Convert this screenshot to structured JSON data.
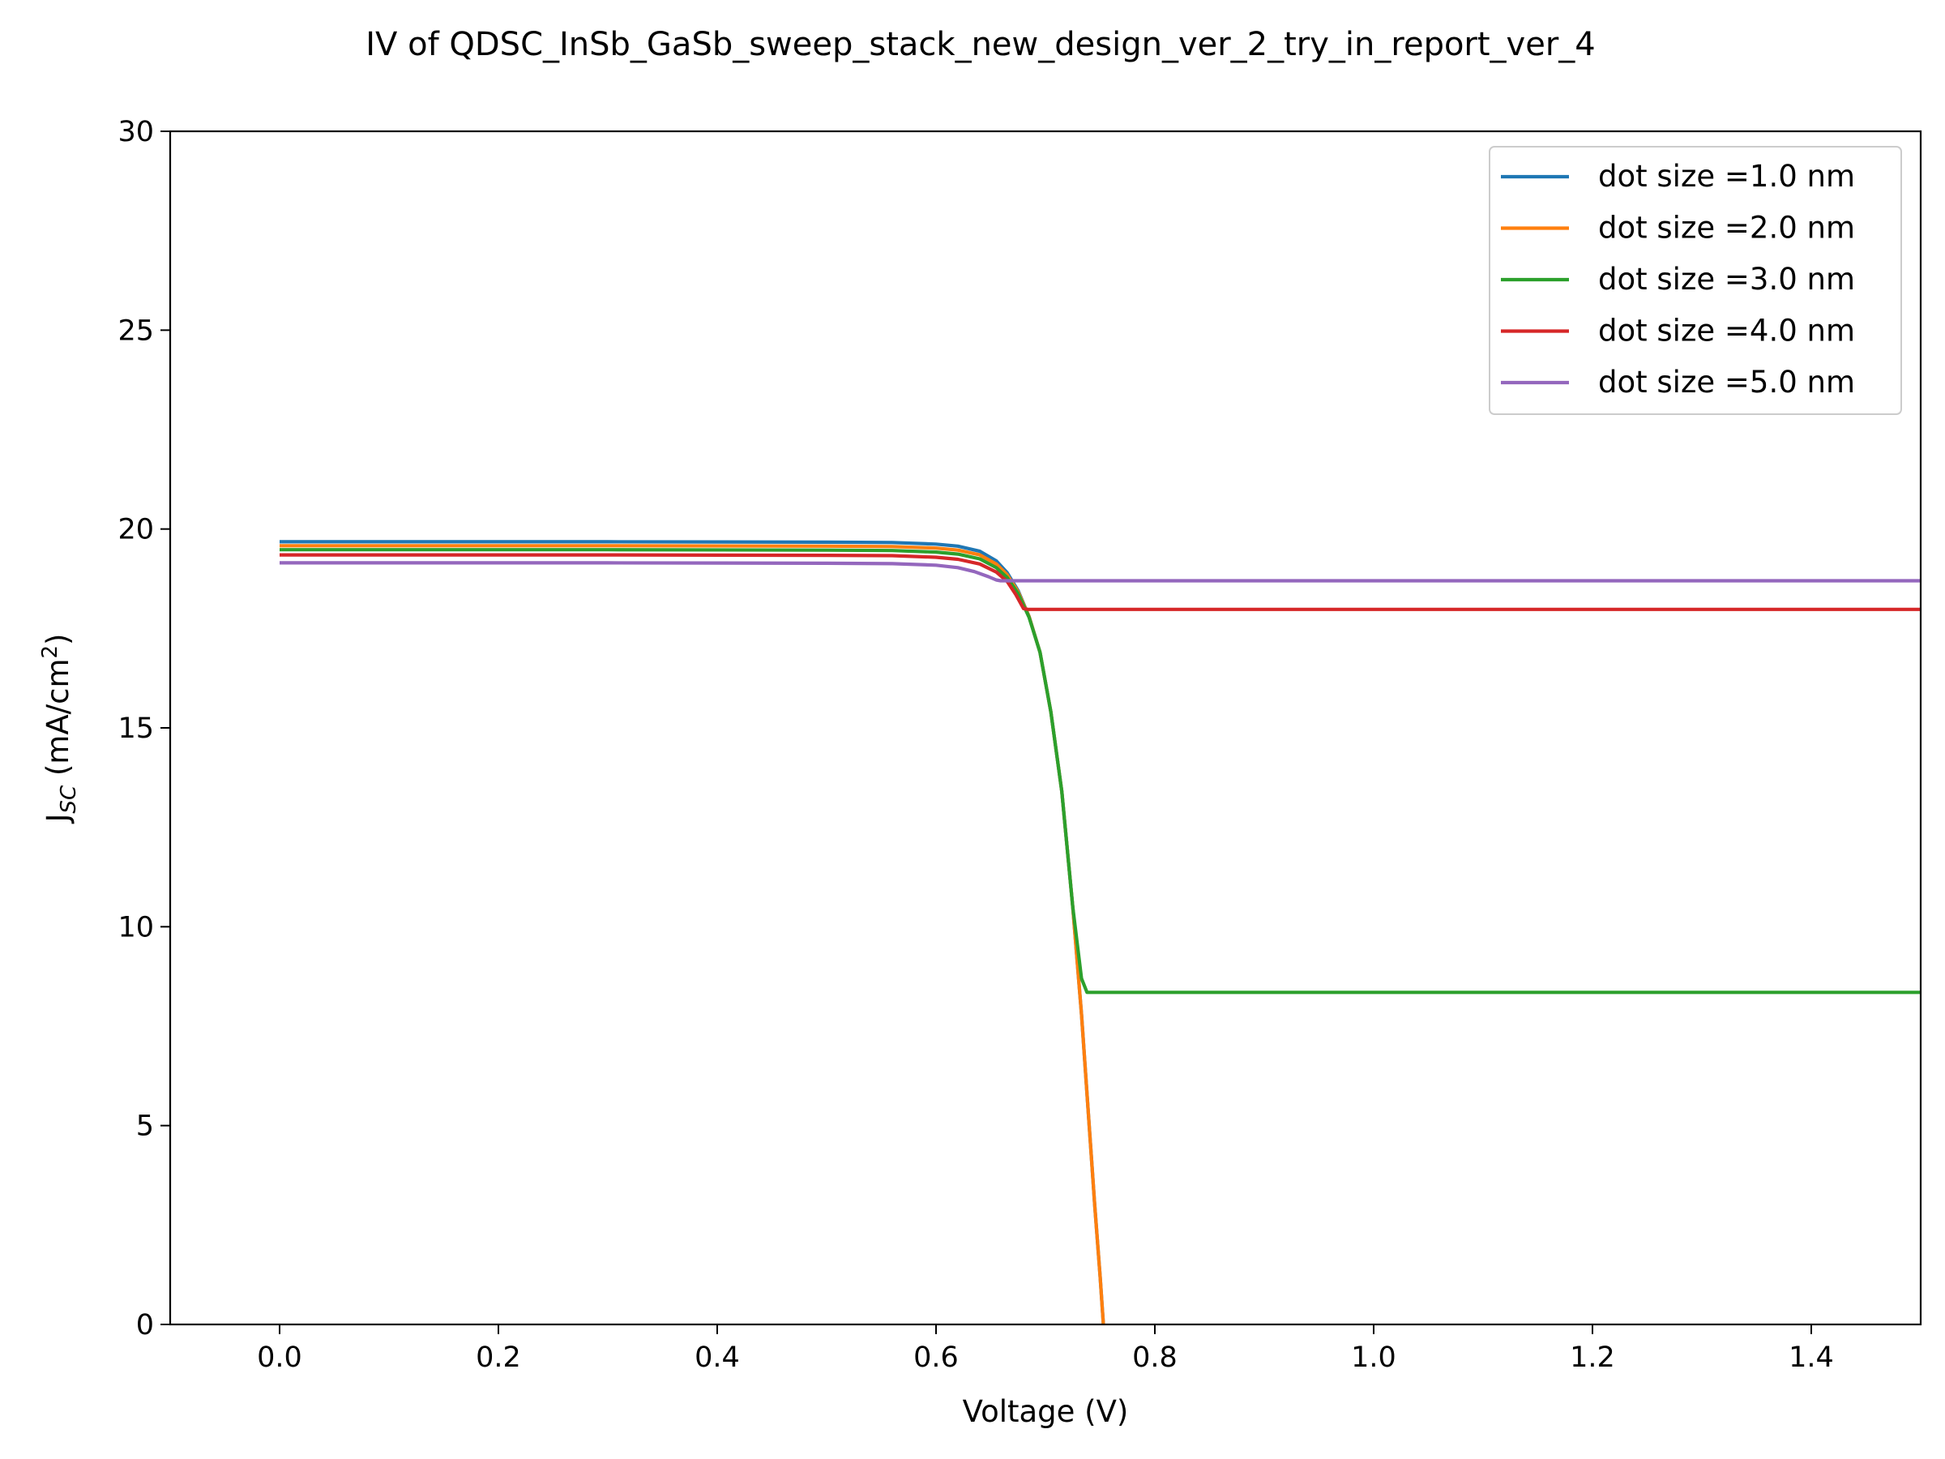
{
  "chart_data": {
    "type": "line",
    "title": "IV of QDSC_InSb_GaSb_sweep_stack_new_design_ver_2_try_in_report_ver_4",
    "xlabel": "Voltage (V)",
    "ylabel_main": "J",
    "ylabel_sub": "SC",
    "ylabel_rest": " (mA/cm",
    "ylabel_sup": "2",
    "ylabel_close": ")",
    "xlim": [
      -0.1,
      1.5
    ],
    "ylim": [
      0,
      30
    ],
    "xticks": [
      0.0,
      0.2,
      0.4,
      0.6,
      0.8,
      1.0,
      1.2,
      1.4
    ],
    "xtick_labels": [
      "0.0",
      "0.2",
      "0.4",
      "0.6",
      "0.8",
      "1.0",
      "1.2",
      "1.4"
    ],
    "yticks": [
      0,
      5,
      10,
      15,
      20,
      25,
      30
    ],
    "ytick_labels": [
      "0",
      "5",
      "10",
      "15",
      "20",
      "25",
      "30"
    ],
    "grid": false,
    "legend_position": "top-right",
    "series": [
      {
        "name": "dot size =1.0 nm",
        "color": "#1f77b4",
        "x": [
          0.0,
          0.3,
          0.5,
          0.56,
          0.6,
          0.62,
          0.64,
          0.655,
          0.665,
          0.675,
          0.685,
          0.695,
          0.705,
          0.715,
          0.725,
          0.733,
          0.74,
          0.745,
          0.75,
          0.753
        ],
        "y": [
          19.68,
          19.68,
          19.67,
          19.66,
          19.62,
          19.57,
          19.44,
          19.2,
          18.9,
          18.45,
          17.8,
          16.9,
          15.4,
          13.4,
          10.5,
          7.8,
          5.0,
          3.0,
          1.2,
          0.0
        ]
      },
      {
        "name": "dot size =2.0 nm",
        "color": "#ff7f0e",
        "x": [
          0.0,
          0.3,
          0.5,
          0.56,
          0.6,
          0.62,
          0.64,
          0.655,
          0.665,
          0.675,
          0.685,
          0.695,
          0.705,
          0.715,
          0.725,
          0.733,
          0.74,
          0.745,
          0.75,
          0.753
        ],
        "y": [
          19.58,
          19.58,
          19.57,
          19.56,
          19.52,
          19.47,
          19.35,
          19.12,
          18.85,
          18.42,
          17.8,
          16.9,
          15.4,
          13.4,
          10.5,
          7.8,
          5.0,
          3.0,
          1.2,
          0.0
        ]
      },
      {
        "name": "dot size =3.0 nm",
        "color": "#2ca02c",
        "x": [
          0.0,
          0.3,
          0.5,
          0.56,
          0.6,
          0.62,
          0.64,
          0.655,
          0.665,
          0.675,
          0.685,
          0.695,
          0.705,
          0.715,
          0.725,
          0.733,
          0.738,
          0.742,
          1.5
        ],
        "y": [
          19.48,
          19.48,
          19.47,
          19.46,
          19.42,
          19.37,
          19.25,
          19.03,
          18.78,
          18.38,
          17.78,
          16.9,
          15.4,
          13.4,
          10.5,
          8.7,
          8.35,
          8.35,
          8.35
        ]
      },
      {
        "name": "dot size =4.0 nm",
        "color": "#d62728",
        "x": [
          0.0,
          0.3,
          0.5,
          0.56,
          0.6,
          0.62,
          0.64,
          0.655,
          0.665,
          0.673,
          0.68,
          0.684,
          1.5
        ],
        "y": [
          19.35,
          19.35,
          19.34,
          19.33,
          19.29,
          19.24,
          19.12,
          18.92,
          18.68,
          18.35,
          18.0,
          17.98,
          17.98
        ]
      },
      {
        "name": "dot size =5.0 nm",
        "color": "#9467bd",
        "x": [
          0.0,
          0.3,
          0.5,
          0.56,
          0.6,
          0.62,
          0.635,
          0.648,
          0.655,
          0.659,
          1.5
        ],
        "y": [
          19.15,
          19.15,
          19.14,
          19.13,
          19.09,
          19.03,
          18.93,
          18.8,
          18.72,
          18.7,
          18.7
        ]
      }
    ]
  }
}
